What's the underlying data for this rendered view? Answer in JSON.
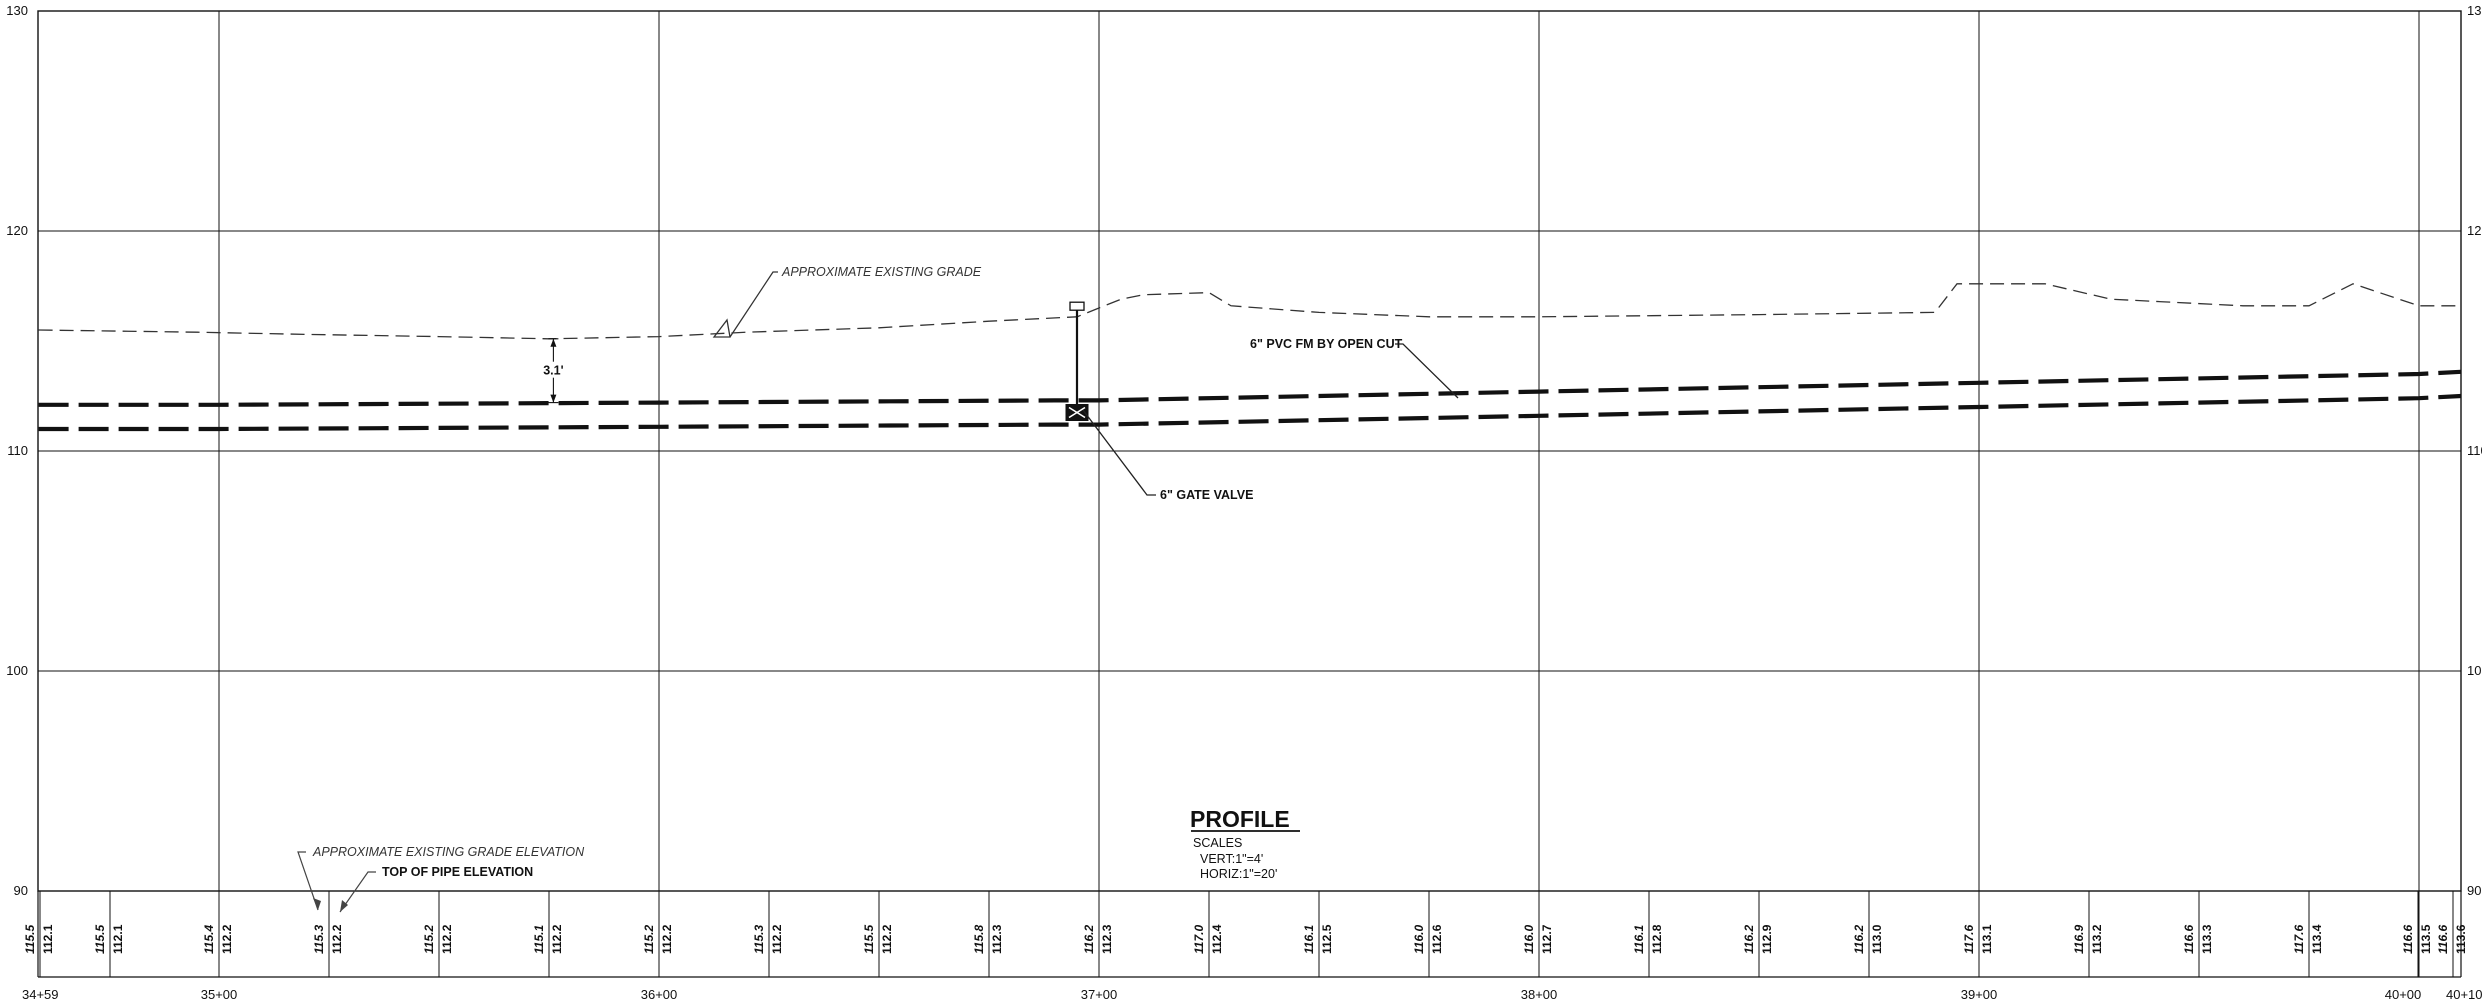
{
  "profile": {
    "title": "PROFILE",
    "scales_label": "SCALES",
    "vert_scale": "VERT:1\"=4'",
    "horiz_scale": "HORIZ:1\"=20'"
  },
  "y_axis": {
    "ticks": [
      130,
      120,
      110,
      100,
      90
    ],
    "range": [
      90,
      130
    ]
  },
  "x_axis": {
    "stations": [
      "34+59",
      "35+00",
      "36+00",
      "37+00",
      "38+00",
      "39+00",
      "40+00",
      "40+10"
    ],
    "station_values": [
      34.59,
      35.0,
      36.0,
      37.0,
      38.0,
      39.0,
      40.0,
      40.1
    ]
  },
  "callouts": {
    "existing_grade": "APPROXIMATE EXISTING GRADE",
    "pipe": "6\" PVC FM BY OPEN CUT",
    "valve": "6\" GATE VALVE",
    "cover": "3.1'",
    "grade_elev": "APPROXIMATE EXISTING GRADE ELEVATION",
    "pipe_elev": "TOP OF PIPE ELEVATION"
  },
  "chart_data": {
    "type": "line",
    "xlabel": "",
    "ylabel": "",
    "ylim": [
      90,
      130
    ],
    "series": [
      {
        "x": [
          34.59,
          34.95,
          35.2,
          35.5,
          35.75,
          36.0,
          36.2,
          36.5,
          36.75,
          36.95,
          37.05,
          37.1,
          37.25,
          37.3,
          37.5,
          37.75,
          38.0,
          38.5,
          38.9,
          38.95,
          39.15,
          39.3,
          39.6,
          39.75,
          39.85,
          40.0,
          40.1
        ],
        "values": [
          115.5,
          115.4,
          115.3,
          115.2,
          115.1,
          115.2,
          115.4,
          115.6,
          115.9,
          116.1,
          116.9,
          117.1,
          117.2,
          116.6,
          116.3,
          116.1,
          116.1,
          116.2,
          116.3,
          117.6,
          117.6,
          116.9,
          116.6,
          116.6,
          117.6,
          116.6,
          116.6
        ]
      },
      {
        "x": [
          34.59,
          35.0,
          36.0,
          36.9,
          37.0,
          38.0,
          39.0,
          40.0,
          40.1
        ],
        "values": [
          112.1,
          112.1,
          112.2,
          112.3,
          112.3,
          112.7,
          113.1,
          113.5,
          113.6
        ]
      }
    ],
    "elevation_table": {
      "grade": [
        115.5,
        115.5,
        115.4,
        115.3,
        115.2,
        115.1,
        115.2,
        115.3,
        115.5,
        115.8,
        116.2,
        117.0,
        116.1,
        116.0,
        116.0,
        116.1,
        116.2,
        116.2,
        117.6,
        116.9,
        116.6,
        117.6,
        116.6,
        116.6
      ],
      "pipe": [
        112.1,
        112.1,
        112.2,
        112.2,
        112.2,
        112.2,
        112.2,
        112.2,
        112.2,
        112.3,
        112.3,
        112.4,
        112.5,
        112.6,
        112.7,
        112.8,
        112.9,
        113.0,
        113.1,
        113.2,
        113.3,
        113.4,
        113.5,
        113.6
      ]
    },
    "gate_valve_station": 36.95,
    "cover_depth": 3.1
  }
}
